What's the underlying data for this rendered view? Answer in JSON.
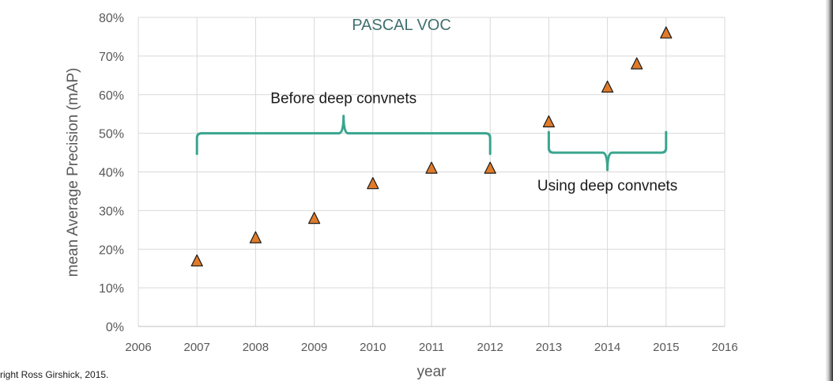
{
  "chart_data": {
    "type": "scatter",
    "title": "PASCAL VOC",
    "xlabel": "year",
    "ylabel": "mean Average Precision (mAP)",
    "xlim": [
      2006,
      2016
    ],
    "ylim": [
      0,
      80
    ],
    "x_ticks": [
      "2006",
      "2007",
      "2008",
      "2009",
      "2010",
      "2011",
      "2012",
      "2013",
      "2014",
      "2015",
      "2016"
    ],
    "y_ticks": [
      "0%",
      "10%",
      "20%",
      "30%",
      "40%",
      "50%",
      "60%",
      "70%",
      "80%"
    ],
    "grid": true,
    "legend": "none",
    "marker": "triangle",
    "marker_color": "#e07b2a",
    "bracket_color": "#3aa58e",
    "points": [
      {
        "x": 2007,
        "y": 17
      },
      {
        "x": 2008,
        "y": 23
      },
      {
        "x": 2009,
        "y": 28
      },
      {
        "x": 2010,
        "y": 37
      },
      {
        "x": 2011,
        "y": 41
      },
      {
        "x": 2012,
        "y": 41
      },
      {
        "x": 2013,
        "y": 53
      },
      {
        "x": 2014,
        "y": 62
      },
      {
        "x": 2014.5,
        "y": 68
      },
      {
        "x": 2015,
        "y": 76
      }
    ],
    "annotations": [
      {
        "text": "Before deep convnets",
        "x_from": 2007,
        "x_to": 2012,
        "y": 50,
        "orientation": "up"
      },
      {
        "text": "Using deep convnets",
        "x_from": 2013,
        "x_to": 2015,
        "y": 45,
        "orientation": "down"
      }
    ]
  },
  "credit": "right Ross Girshick, 2015."
}
